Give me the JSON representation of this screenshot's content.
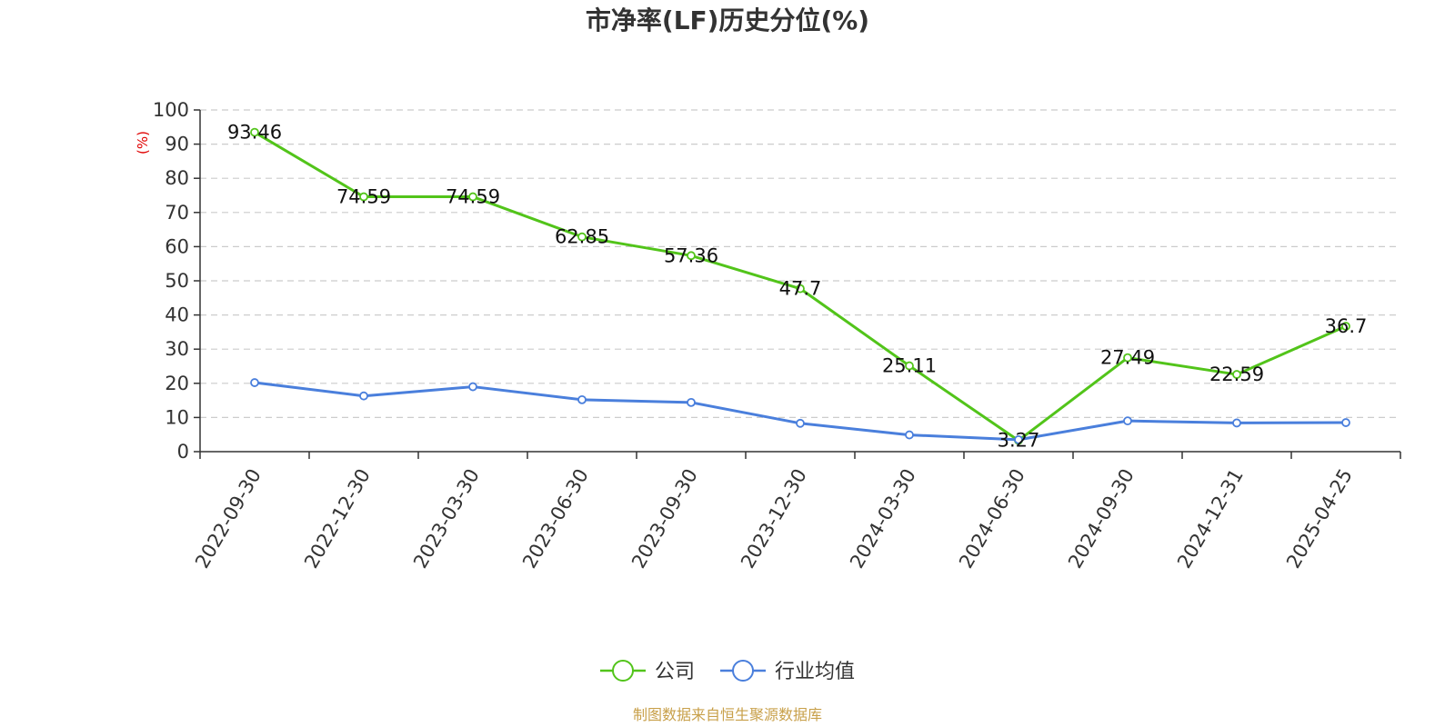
{
  "chart_data": {
    "type": "line",
    "title": "市净率(LF)历史分位(%)",
    "ylabel": "(%)",
    "ylim": [
      0,
      100
    ],
    "yticks": [
      0,
      10,
      20,
      30,
      40,
      50,
      60,
      70,
      80,
      90,
      100
    ],
    "categories": [
      "2022-09-30",
      "2022-12-30",
      "2023-03-30",
      "2023-06-30",
      "2023-09-30",
      "2023-12-30",
      "2024-03-30",
      "2024-06-30",
      "2024-09-30",
      "2024-12-31",
      "2025-04-25"
    ],
    "series": [
      {
        "name": "公司",
        "color": "#52c41a",
        "show_labels": true,
        "values": [
          93.46,
          74.59,
          74.59,
          62.85,
          57.36,
          47.7,
          25.11,
          3.27,
          27.49,
          22.59,
          36.7
        ]
      },
      {
        "name": "行业均值",
        "color": "#4a7fdc",
        "show_labels": false,
        "values": [
          20.2,
          16.3,
          19.0,
          15.2,
          14.4,
          8.3,
          4.9,
          3.5,
          9.0,
          8.4,
          8.5
        ]
      }
    ],
    "grid": true,
    "legend_position": "bottom-center",
    "ylabel_color": "#e00000"
  },
  "footer": {
    "source": "制图数据来自恒生聚源数据库",
    "source_color": "#c8a04a"
  }
}
